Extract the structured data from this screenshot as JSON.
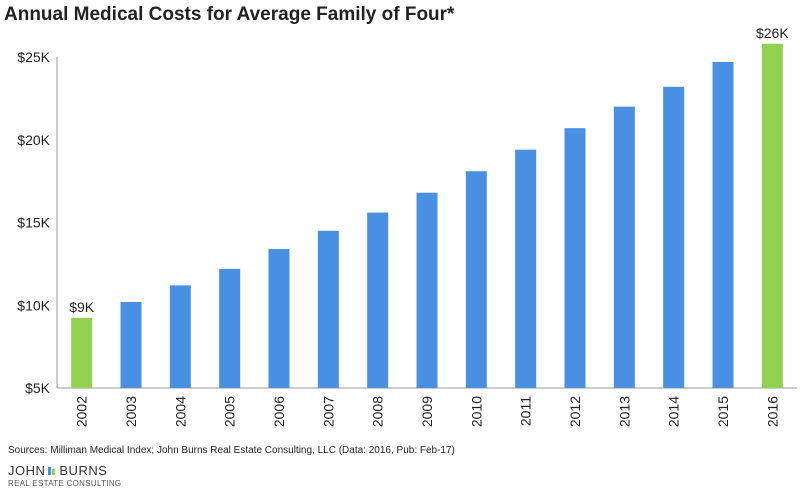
{
  "chart_data": {
    "type": "bar",
    "title": "Annual Medical Costs for Average Family of Four*",
    "xlabel": "",
    "ylabel": "",
    "categories": [
      "2002",
      "2003",
      "2004",
      "2005",
      "2006",
      "2007",
      "2008",
      "2009",
      "2010",
      "2011",
      "2012",
      "2013",
      "2014",
      "2015",
      "2016"
    ],
    "values": [
      9235,
      10200,
      11200,
      12200,
      13400,
      14500,
      15600,
      16800,
      18100,
      19400,
      20700,
      22000,
      23200,
      24700,
      25800
    ],
    "ylim": [
      5000,
      25000
    ],
    "yticks": [
      5000,
      10000,
      15000,
      20000,
      25000
    ],
    "ytick_labels": [
      "$5K",
      "$10K",
      "$15K",
      "$20K",
      "$25K"
    ],
    "grid": false,
    "bar_colors": {
      "default": "#4a90e2",
      "highlight": "#92d050"
    },
    "highlighted_categories": [
      "2002",
      "2016"
    ],
    "data_labels": [
      {
        "category": "2002",
        "text": "$9K"
      },
      {
        "category": "2016",
        "text": "$26K"
      }
    ]
  },
  "source_text": "Sources: Milliman Medical Index; John Burns Real Estate Consulting, LLC (Data: 2016, Pub: Feb-17)",
  "logo": {
    "left": "JOHN",
    "right": "BURNS",
    "sub": "REAL ESTATE CONSULTING"
  }
}
